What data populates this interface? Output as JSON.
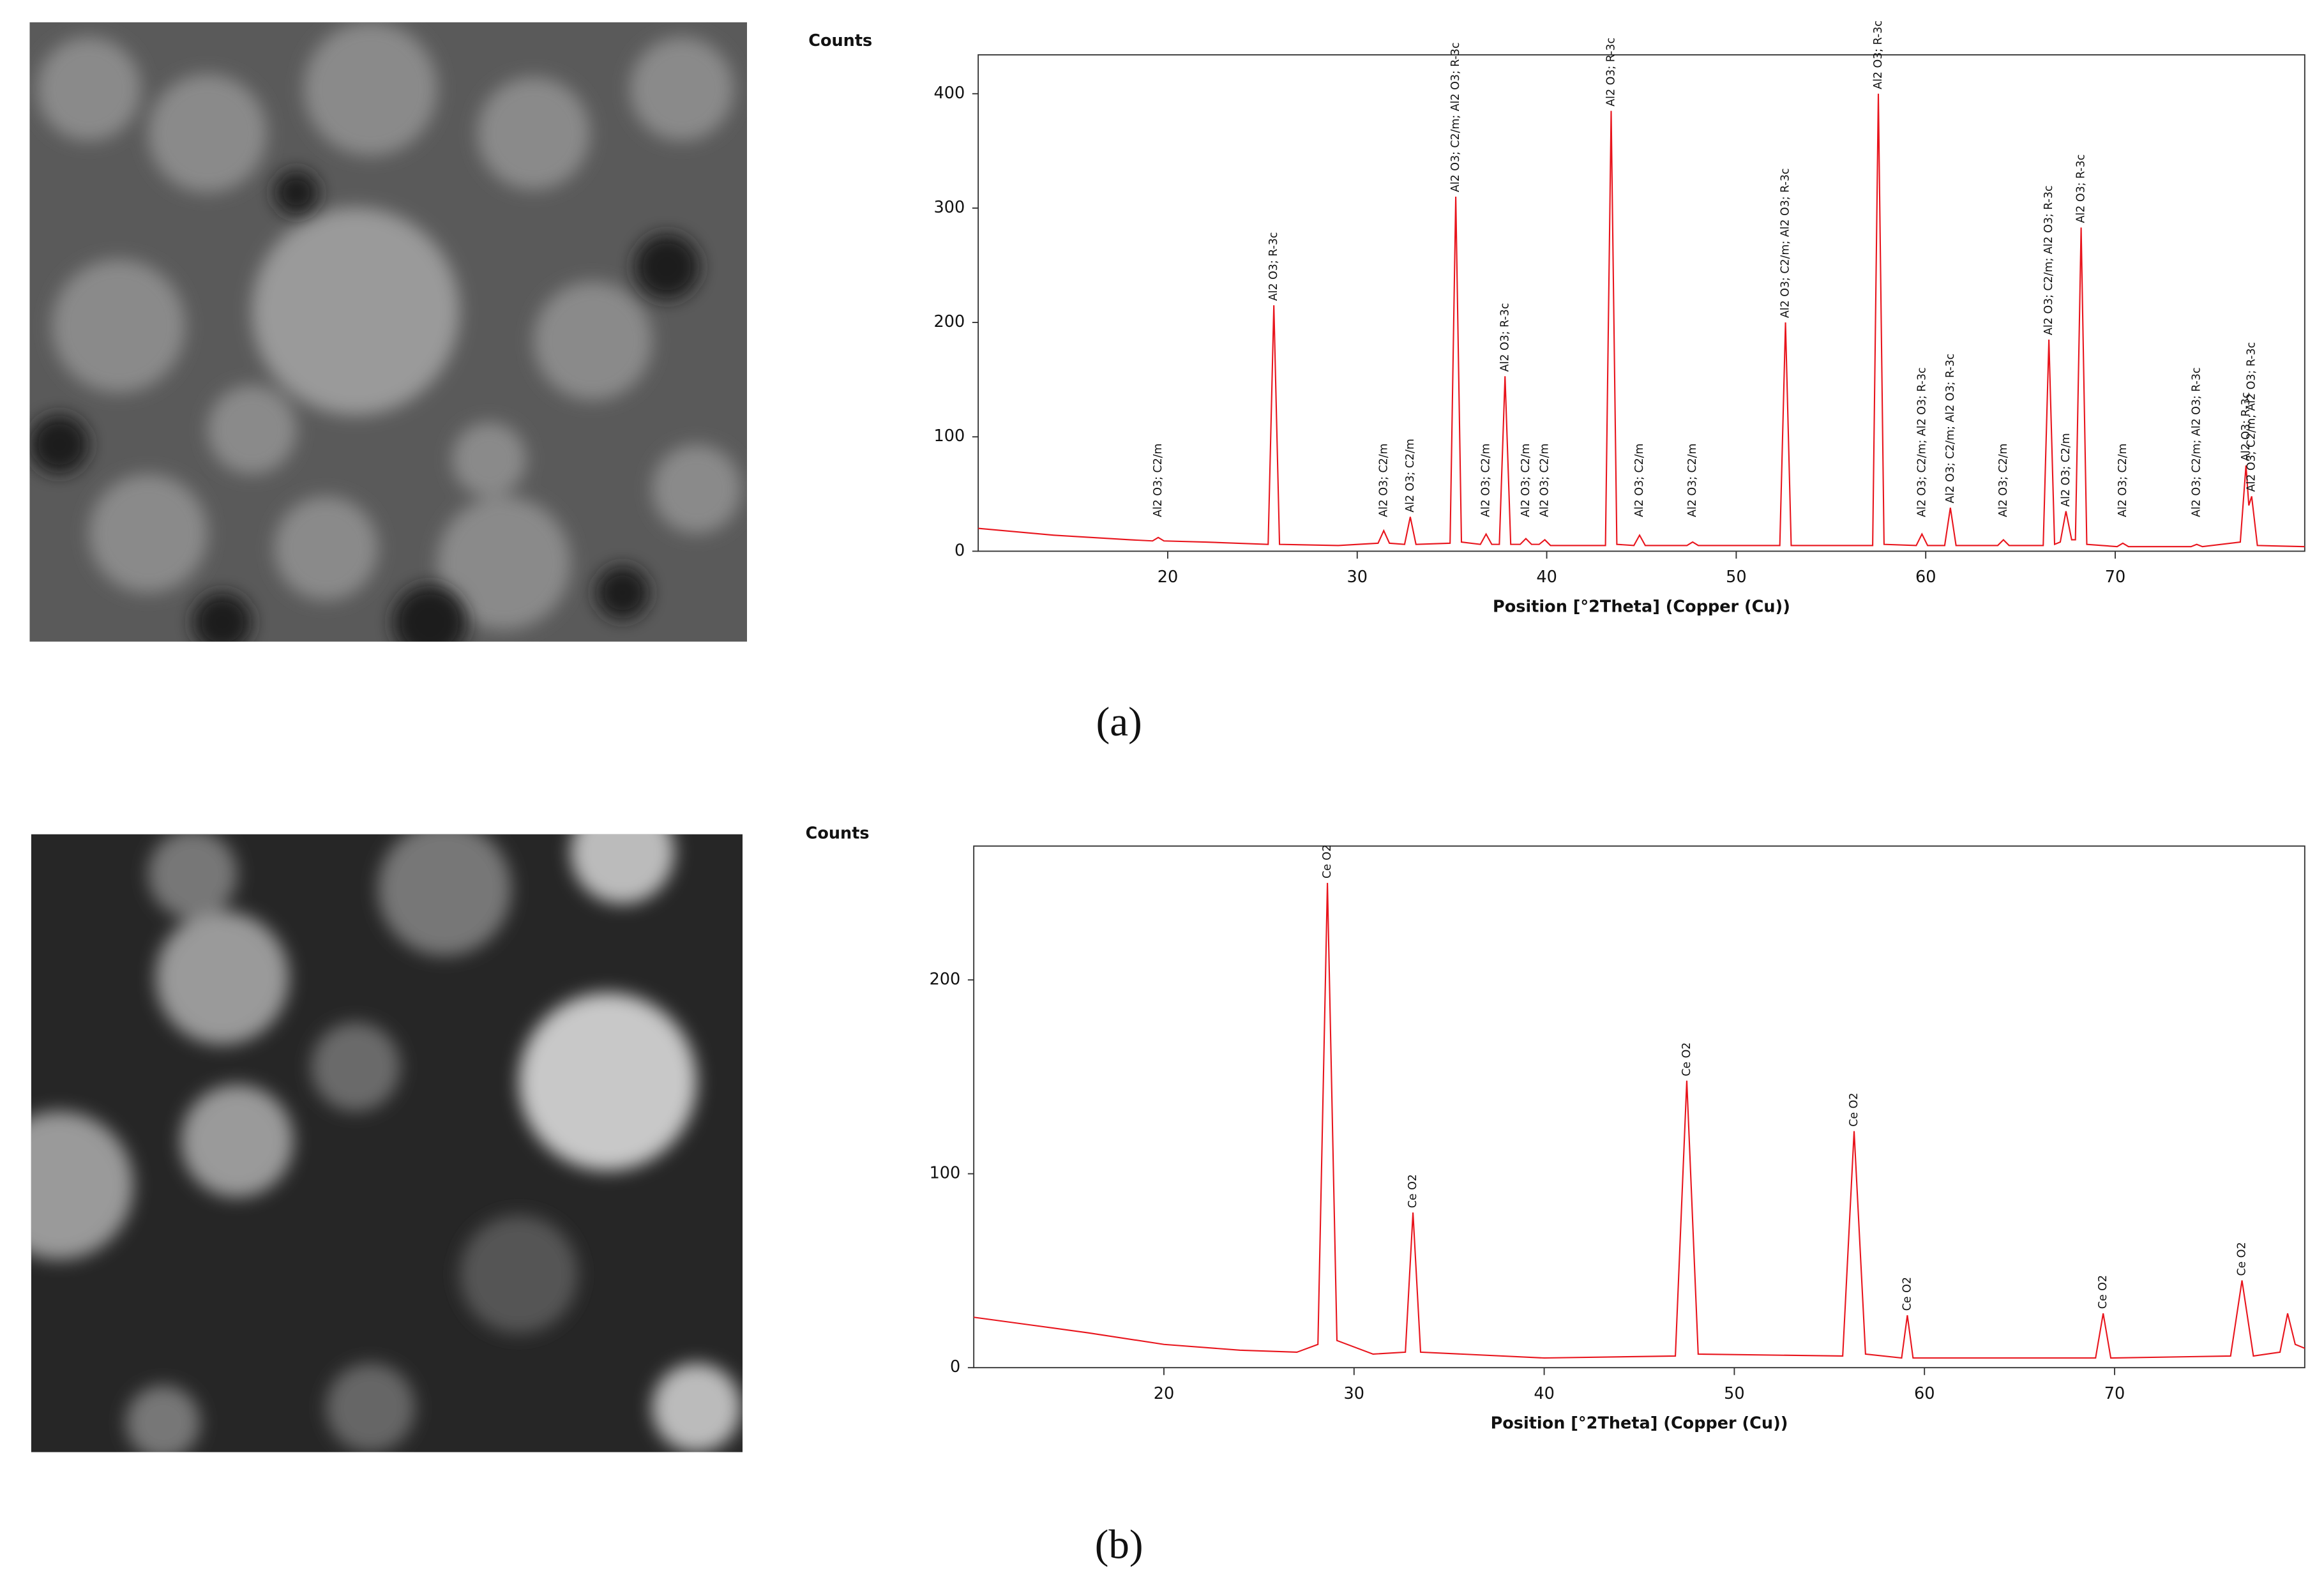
{
  "chart_data": [
    {
      "type": "line",
      "y_label": "Counts",
      "x_label": "Position [°2Theta] (Copper (Cu))",
      "caption": "(a)",
      "xlim": [
        10,
        80
      ],
      "xticks": [
        20,
        30,
        40,
        50,
        60,
        70
      ],
      "ylim": [
        0,
        434
      ],
      "yticks": [
        0,
        100,
        200,
        300,
        400
      ],
      "x": [
        10,
        14,
        18,
        19.2,
        19.5,
        19.8,
        22,
        25.3,
        25.6,
        25.9,
        29,
        31.1,
        31.4,
        31.7,
        32.5,
        32.8,
        33.1,
        34.9,
        35.2,
        35.5,
        36.5,
        36.8,
        37.1,
        37.5,
        37.8,
        38.1,
        38.6,
        38.9,
        39.2,
        39.6,
        39.9,
        40.2,
        43.1,
        43.4,
        43.7,
        44.6,
        44.9,
        45.2,
        47.4,
        47.7,
        48,
        52.3,
        52.6,
        52.9,
        57.2,
        57.5,
        57.8,
        59.5,
        59.8,
        60.1,
        61,
        61.3,
        61.6,
        63.8,
        64.1,
        64.4,
        66.2,
        66.5,
        66.8,
        67.1,
        67.4,
        67.7,
        67.9,
        68.2,
        68.5,
        70.1,
        70.4,
        70.7,
        74,
        74.3,
        74.6,
        76.6,
        76.9,
        77.05,
        77.2,
        77.5,
        80
      ],
      "series": [
        {
          "color": "#e8141c",
          "values": [
            20,
            14,
            10,
            9,
            12,
            9,
            8,
            6,
            215,
            6,
            5,
            7,
            18,
            7,
            6,
            30,
            6,
            7,
            310,
            8,
            6,
            15,
            6,
            6,
            153,
            6,
            6,
            11,
            6,
            6,
            10,
            5,
            5,
            385,
            6,
            5,
            14,
            5,
            5,
            8,
            5,
            5,
            200,
            5,
            5,
            400,
            6,
            5,
            15,
            5,
            5,
            38,
            5,
            5,
            10,
            5,
            5,
            185,
            6,
            8,
            35,
            10,
            10,
            283,
            6,
            4,
            7,
            4,
            4,
            6,
            4,
            8,
            75,
            40,
            48,
            5,
            4
          ]
        }
      ],
      "annotations": [
        {
          "x": 19.5,
          "text": "Al2 O3; C2/m"
        },
        {
          "x": 25.6,
          "text": "Al2 O3; R-3c"
        },
        {
          "x": 31.4,
          "text": "Al2 O3; C2/m"
        },
        {
          "x": 32.8,
          "text": "Al2 O3; C2/m"
        },
        {
          "x": 35.2,
          "text": "Al2 O3; C2/m; Al2 O3; R-3c"
        },
        {
          "x": 36.8,
          "text": "Al2 O3; C2/m"
        },
        {
          "x": 37.8,
          "text": "Al2 O3; R-3c"
        },
        {
          "x": 38.9,
          "text": "Al2 O3; C2/m"
        },
        {
          "x": 39.9,
          "text": "Al2 O3; C2/m"
        },
        {
          "x": 43.4,
          "text": "Al2 O3; R-3c"
        },
        {
          "x": 44.9,
          "text": "Al2 O3; C2/m"
        },
        {
          "x": 47.7,
          "text": "Al2 O3; C2/m"
        },
        {
          "x": 52.6,
          "text": "Al2 O3; C2/m; Al2 O3; R-3c"
        },
        {
          "x": 57.5,
          "text": "Al2 O3; R-3c"
        },
        {
          "x": 59.8,
          "text": "Al2 O3; C2/m; Al2 O3; R-3c"
        },
        {
          "x": 61.3,
          "text": "Al2 O3; C2/m; Al2 O3; R-3c"
        },
        {
          "x": 64.1,
          "text": "Al2 O3; C2/m"
        },
        {
          "x": 66.5,
          "text": "Al2 O3; C2/m; Al2 O3; R-3c"
        },
        {
          "x": 67.4,
          "text": "Al2 O3; C2/m"
        },
        {
          "x": 68.2,
          "text": "Al2 O3; R-3c"
        },
        {
          "x": 70.4,
          "text": "Al2 O3; C2/m"
        },
        {
          "x": 74.3,
          "text": "Al2 O3; C2/m; Al2 O3; R-3c"
        },
        {
          "x": 76.9,
          "text": "Al2 O3; R-3c"
        },
        {
          "x": 77.2,
          "text": "Al2 O3; C2/m; Al2 O3; R-3c"
        }
      ]
    },
    {
      "type": "line",
      "y_label": "Counts",
      "x_label": "Position [°2Theta] (Copper (Cu))",
      "caption": "(b)",
      "xlim": [
        10,
        80
      ],
      "xticks": [
        20,
        30,
        40,
        50,
        60,
        70
      ],
      "ylim": [
        0,
        269
      ],
      "yticks": [
        0,
        100,
        200
      ],
      "x": [
        10,
        13,
        16,
        20,
        24,
        27,
        28.1,
        28.6,
        29.1,
        31,
        32.7,
        33.1,
        33.5,
        40,
        46.9,
        47.5,
        48.1,
        55.7,
        56.3,
        56.9,
        58.8,
        59.1,
        59.4,
        69,
        69.4,
        69.8,
        76.1,
        76.7,
        77.3,
        78.7,
        79.1,
        79.5,
        80
      ],
      "series": [
        {
          "color": "#e8141c",
          "values": [
            26,
            22,
            18,
            12,
            9,
            8,
            12,
            250,
            14,
            7,
            8,
            80,
            8,
            5,
            6,
            148,
            7,
            6,
            122,
            7,
            5,
            27,
            5,
            5,
            28,
            5,
            6,
            45,
            6,
            8,
            28,
            12,
            10
          ]
        }
      ],
      "annotations": [
        {
          "x": 28.6,
          "text": "Ce O2"
        },
        {
          "x": 33.1,
          "text": "Ce O2"
        },
        {
          "x": 47.5,
          "text": "Ce O2"
        },
        {
          "x": 56.3,
          "text": "Ce O2"
        },
        {
          "x": 59.1,
          "text": "Ce O2"
        },
        {
          "x": 69.4,
          "text": "Ce O2"
        },
        {
          "x": 76.7,
          "text": "Ce O2"
        }
      ]
    }
  ]
}
